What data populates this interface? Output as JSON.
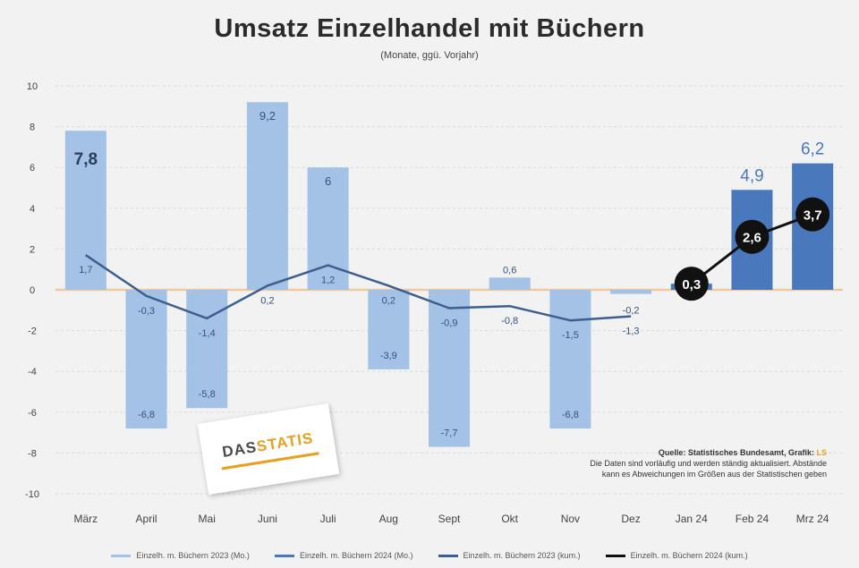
{
  "header": {
    "title": "Umsatz Einzelhandel mit Büchern",
    "subtitle": "(Monate, ggü. Vorjahr)"
  },
  "logo": {
    "text_main": "DAS",
    "text_accent": "STATIS"
  },
  "source": {
    "label": "Quelle: Statistisches Bundesamt, Grafik:",
    "accent": "LS",
    "note1": "Die Daten sind vorläufig und werden ständig aktualisiert. Abstände",
    "note2": "kann es Abweichungen im Größen aus der Statistischen geben"
  },
  "colors": {
    "bar_2023": "#a4c2e6",
    "bar_2024": "#4a78bc",
    "line_2023": "#3d5f8f",
    "line_2024": "#111111",
    "zero_line": "#f0c8a0",
    "grid": "#d9d9d9"
  },
  "chart_data": {
    "type": "bar",
    "title": "Umsatz Einzelhandel mit Büchern",
    "subtitle": "(Monate, ggü. Vorjahr)",
    "categories": [
      "März",
      "April",
      "Mai",
      "Juni",
      "Juli",
      "Aug",
      "Sept",
      "Okt",
      "Nov",
      "Dez",
      "Jan 24",
      "Feb 24",
      "Mrz 24"
    ],
    "ylim": [
      -10,
      10
    ],
    "yticks": [
      -10,
      -8,
      -6,
      -4,
      -2,
      0,
      2,
      4,
      6,
      8,
      10
    ],
    "grid": true,
    "series": [
      {
        "name": "Einzelh. m. Büchern 2023 (Mo.)",
        "kind": "bar",
        "values": [
          7.8,
          -6.8,
          -5.8,
          9.2,
          6,
          -3.9,
          -7.7,
          0.6,
          -6.8,
          -0.2,
          null,
          null,
          null
        ]
      },
      {
        "name": "Einzelh. m. Büchern 2024 (Mo.)",
        "kind": "bar",
        "values": [
          null,
          null,
          null,
          null,
          null,
          null,
          null,
          null,
          null,
          null,
          0.3,
          4.9,
          6.2
        ]
      },
      {
        "name": "Einzelh. m. Büchern 2023 (kum.)",
        "kind": "line",
        "values": [
          1.7,
          -0.3,
          -1.4,
          0.2,
          1.2,
          0.2,
          -0.9,
          -0.8,
          -1.5,
          -1.3,
          null,
          null,
          null
        ]
      },
      {
        "name": "Einzelh. m. Büchern 2024 (kum.)",
        "kind": "line",
        "values": [
          null,
          null,
          null,
          null,
          null,
          null,
          null,
          null,
          null,
          null,
          0.3,
          2.6,
          3.7
        ]
      }
    ],
    "bar_labels": [
      "7,8",
      "-6,8",
      "-5,8",
      "9,2",
      "6",
      "-3,9",
      "-7,7",
      "0,6",
      "-6,8",
      "-0,2",
      "",
      "4,9",
      "6,2"
    ],
    "line_labels_2023": [
      "1,7",
      "-0,3",
      "-1,4",
      "0,2",
      "1,2",
      "0,2",
      "-0,9",
      "-0,8",
      "-1,5",
      "-1,3"
    ],
    "line_labels_2024": [
      "0,3",
      "2,6",
      "3,7"
    ]
  }
}
